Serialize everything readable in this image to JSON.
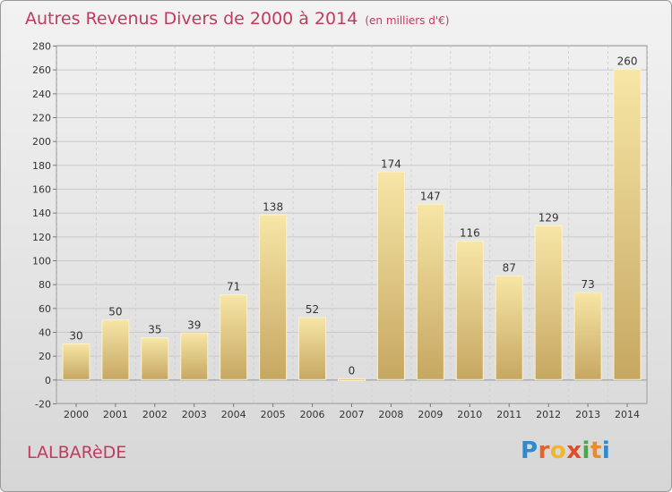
{
  "header": {
    "title": "Autres Revenus Divers de 2000 à 2014",
    "subtitle": "(en milliers d'€)"
  },
  "footer": {
    "city": "LALBARèDE",
    "logo": {
      "letters": [
        "P",
        "r",
        "o",
        "x",
        "i",
        "t",
        "i"
      ],
      "colors": [
        "#2f8ad0",
        "#e5622a",
        "#f0b62e",
        "#e04b2a",
        "#4aa84a",
        "#e98a2c",
        "#2f8ad0"
      ]
    }
  },
  "colors": {
    "accent": "#c23a5e",
    "bar_light": "#f7e6a6",
    "bar_dark": "#c6a762",
    "bar_edge": "#fbf1c8"
  },
  "chart_data": {
    "type": "bar",
    "title": "Autres Revenus Divers de 2000 à 2014",
    "subtitle": "(en milliers d'€)",
    "categories": [
      "2000",
      "2001",
      "2002",
      "2003",
      "2004",
      "2005",
      "2006",
      "2007",
      "2008",
      "2009",
      "2010",
      "2011",
      "2012",
      "2013",
      "2014"
    ],
    "values": [
      30,
      50,
      35,
      39,
      71,
      138,
      52,
      0,
      174,
      147,
      116,
      87,
      129,
      73,
      260
    ],
    "ylim": [
      -20,
      280
    ],
    "yticks": [
      -20,
      0,
      20,
      40,
      60,
      80,
      100,
      120,
      140,
      160,
      180,
      200,
      220,
      240,
      260,
      280
    ],
    "grid": true,
    "xlabel": "",
    "ylabel": ""
  }
}
